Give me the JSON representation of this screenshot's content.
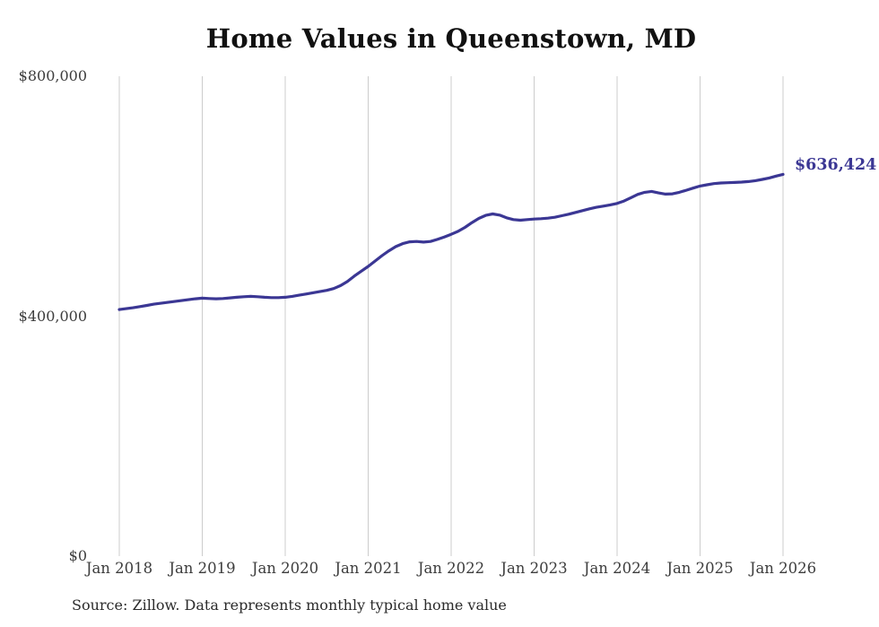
{
  "chart": {
    "title": "Home Values in Queenstown, MD",
    "final_value_label": "$636,424",
    "source_note": "Source: Zillow. Data represents monthly typical home value",
    "colors": {
      "line": "#3b3794",
      "annotation": "#3b3794",
      "gridline": "#cccccc",
      "tick_text": "#3d3d3d"
    }
  },
  "chart_data": {
    "type": "line",
    "title": "Home Values in Queenstown, MD",
    "x_unit": "month",
    "x_start": "Jan 2018",
    "x_end": "Jan 2026",
    "x_tick_labels": [
      "Jan 2018",
      "Jan 2019",
      "Jan 2020",
      "Jan 2021",
      "Jan 2022",
      "Jan 2023",
      "Jan 2024",
      "Jan 2025",
      "Jan 2026"
    ],
    "y_ticks": [
      {
        "value": 800000,
        "label": "$800,000"
      },
      {
        "value": 400000,
        "label": "$400,000"
      },
      {
        "value": 0,
        "label": "$0"
      }
    ],
    "ylim": [
      0,
      800000
    ],
    "grid": "vertical-only",
    "legend": "none",
    "annotation": {
      "text": "$636,424",
      "value": 636424,
      "position": "line-end"
    },
    "series": [
      {
        "name": "Monthly typical home value",
        "values": [
          411000,
          412500,
          414000,
          416000,
          418000,
          420000,
          421500,
          423000,
          424500,
          426000,
          427500,
          429000,
          430000,
          429500,
          429000,
          429500,
          430500,
          431500,
          432500,
          433000,
          432500,
          431500,
          431000,
          431000,
          431500,
          433000,
          435000,
          437000,
          439000,
          441000,
          443000,
          446000,
          451000,
          458000,
          467000,
          475000,
          483000,
          492000,
          501000,
          509000,
          516000,
          521000,
          524000,
          524500,
          523500,
          524500,
          528000,
          532000,
          536500,
          541500,
          548000,
          556000,
          563000,
          568000,
          570500,
          568500,
          564000,
          561000,
          560000,
          561000,
          562000,
          562500,
          563500,
          565000,
          567500,
          570000,
          573000,
          576000,
          579000,
          581500,
          583500,
          585500,
          588000,
          592000,
          597500,
          603000,
          606500,
          608000,
          605500,
          603500,
          604000,
          606500,
          610000,
          613500,
          617000,
          619000,
          621000,
          622000,
          622500,
          623000,
          623500,
          624500,
          626000,
          628000,
          630500,
          633500,
          636424
        ]
      }
    ]
  }
}
